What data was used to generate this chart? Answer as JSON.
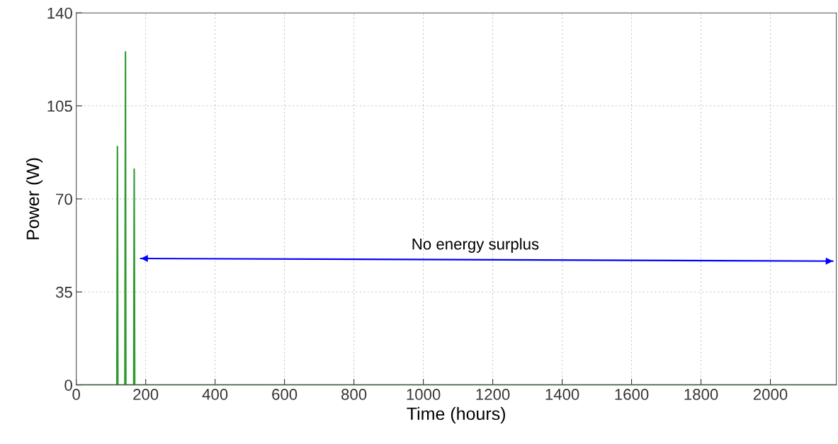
{
  "chart_data": {
    "type": "line",
    "xlabel": "Time (hours)",
    "ylabel": "Power (W)",
    "xlim": [
      0,
      2190
    ],
    "xticks": [
      0,
      200,
      400,
      600,
      800,
      1000,
      1200,
      1400,
      1600,
      1800,
      2000
    ],
    "ylim": [
      0,
      140
    ],
    "yticks": [
      0,
      35,
      70,
      105,
      140
    ],
    "grid": true,
    "series": [
      {
        "color": "#2e9a2e",
        "x": [
          0,
          117,
          118.6,
          120,
          140,
          141.8,
          143,
          165.5,
          167,
          168.5,
          2190
        ],
        "values": [
          0,
          0,
          89.7,
          0,
          0,
          125.3,
          0,
          0,
          81.2,
          0,
          0
        ]
      },
      {
        "color": "#0000ff",
        "x": [
          186,
          2180
        ],
        "values": [
          47.6,
          46.6
        ]
      }
    ],
    "annotations": [
      "No energy surplus"
    ]
  }
}
